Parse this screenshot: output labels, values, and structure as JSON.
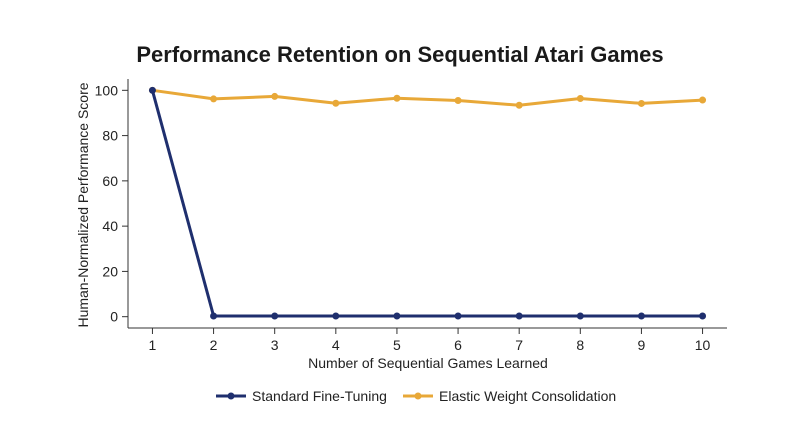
{
  "chart_data": {
    "type": "line",
    "title": "Performance Retention on Sequential Atari Games",
    "xlabel": "Number of Sequential Games Learned",
    "ylabel": "Human-Normalized Performance Score",
    "x": [
      1,
      2,
      3,
      4,
      5,
      6,
      7,
      8,
      9,
      10
    ],
    "xlim": [
      0.6,
      10.4
    ],
    "ylim": [
      -5,
      105
    ],
    "yticks": [
      0,
      20,
      40,
      60,
      80,
      100
    ],
    "grid": false,
    "legend_position": "bottom-center",
    "series": [
      {
        "name": "Standard Fine-Tuning",
        "color": "#1f2f6e",
        "values": [
          100,
          0.3,
          0.3,
          0.3,
          0.3,
          0.3,
          0.3,
          0.3,
          0.3,
          0.3
        ]
      },
      {
        "name": "Elastic Weight Consolidation",
        "color": "#e8a838",
        "values": [
          100,
          96.2,
          97.3,
          94.3,
          96.5,
          95.5,
          93.4,
          96.4,
          94.2,
          95.7
        ]
      }
    ]
  }
}
